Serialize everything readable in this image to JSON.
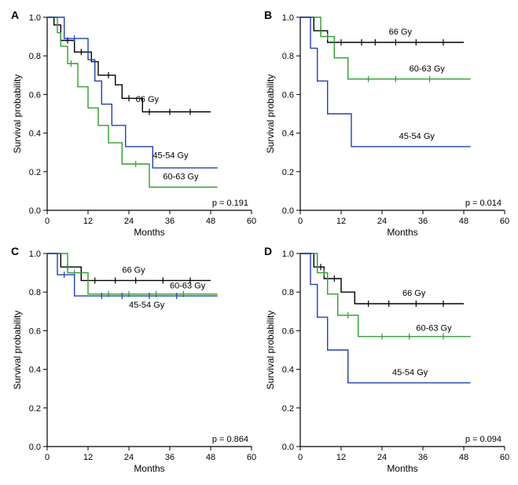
{
  "global": {
    "bg": "#ffffff",
    "axis_color": "#000000",
    "axis_width": 1.2,
    "line_width": 1.4,
    "tick_fontsize": 11,
    "label_fontsize": 12,
    "panel_letter_fontsize": 14,
    "panel_letter_weight": "bold",
    "xlabel": "Months",
    "ylabel": "Survival probability",
    "xlim": [
      0,
      60
    ],
    "ylim": [
      0,
      1.0
    ],
    "xticks": [
      0,
      12,
      24,
      36,
      48,
      60
    ],
    "yticks": [
      0,
      0.2,
      0.4,
      0.6,
      0.8,
      1.0
    ],
    "colors": {
      "66": "#000000",
      "60-63": "#2ca02c",
      "45-54": "#1f3fbf"
    }
  },
  "panels": [
    {
      "letter": "A",
      "p_value": "p = 0.191",
      "series": [
        {
          "key": "66",
          "label": "66 Gy",
          "label_pos": [
            26,
            0.56
          ],
          "steps": [
            [
              0,
              1.0
            ],
            [
              2,
              1.0
            ],
            [
              2,
              0.96
            ],
            [
              4,
              0.96
            ],
            [
              4,
              0.88
            ],
            [
              8,
              0.88
            ],
            [
              8,
              0.82
            ],
            [
              13,
              0.82
            ],
            [
              13,
              0.77
            ],
            [
              15,
              0.77
            ],
            [
              15,
              0.7
            ],
            [
              20,
              0.7
            ],
            [
              20,
              0.65
            ],
            [
              22,
              0.65
            ],
            [
              22,
              0.58
            ],
            [
              28,
              0.58
            ],
            [
              28,
              0.51
            ],
            [
              48,
              0.51
            ]
          ],
          "ticks": [
            [
              6,
              0.88
            ],
            [
              10,
              0.82
            ],
            [
              18,
              0.7
            ],
            [
              24,
              0.58
            ],
            [
              30,
              0.51
            ],
            [
              36,
              0.51
            ],
            [
              42,
              0.51
            ]
          ]
        },
        {
          "key": "60-63",
          "label": "60-63 Gy",
          "label_pos": [
            34,
            0.16
          ],
          "steps": [
            [
              0,
              1.0
            ],
            [
              3,
              1.0
            ],
            [
              3,
              0.92
            ],
            [
              4,
              0.92
            ],
            [
              4,
              0.85
            ],
            [
              6,
              0.85
            ],
            [
              6,
              0.76
            ],
            [
              9,
              0.76
            ],
            [
              9,
              0.64
            ],
            [
              12,
              0.64
            ],
            [
              12,
              0.53
            ],
            [
              15,
              0.53
            ],
            [
              15,
              0.44
            ],
            [
              18,
              0.44
            ],
            [
              18,
              0.35
            ],
            [
              22,
              0.35
            ],
            [
              22,
              0.24
            ],
            [
              30,
              0.24
            ],
            [
              30,
              0.12
            ],
            [
              50,
              0.12
            ]
          ],
          "ticks": [
            [
              7,
              0.76
            ],
            [
              26,
              0.24
            ]
          ]
        },
        {
          "key": "45-54",
          "label": "45-54 Gy",
          "label_pos": [
            31,
            0.27
          ],
          "steps": [
            [
              0,
              1.0
            ],
            [
              5,
              1.0
            ],
            [
              5,
              0.89
            ],
            [
              12,
              0.89
            ],
            [
              12,
              0.78
            ],
            [
              14,
              0.78
            ],
            [
              14,
              0.67
            ],
            [
              16,
              0.67
            ],
            [
              16,
              0.55
            ],
            [
              19,
              0.55
            ],
            [
              19,
              0.44
            ],
            [
              23,
              0.44
            ],
            [
              23,
              0.33
            ],
            [
              31,
              0.33
            ],
            [
              31,
              0.22
            ],
            [
              50,
              0.22
            ]
          ],
          "ticks": [
            [
              8,
              0.89
            ]
          ]
        }
      ]
    },
    {
      "letter": "B",
      "p_value": "p = 0.014",
      "series": [
        {
          "key": "66",
          "label": "66 Gy",
          "label_pos": [
            26,
            0.91
          ],
          "steps": [
            [
              0,
              1.0
            ],
            [
              4,
              1.0
            ],
            [
              4,
              0.93
            ],
            [
              8,
              0.93
            ],
            [
              8,
              0.87
            ],
            [
              48,
              0.87
            ]
          ],
          "ticks": [
            [
              6,
              0.93
            ],
            [
              12,
              0.87
            ],
            [
              18,
              0.87
            ],
            [
              22,
              0.87
            ],
            [
              28,
              0.87
            ],
            [
              34,
              0.87
            ],
            [
              42,
              0.87
            ]
          ]
        },
        {
          "key": "60-63",
          "label": "60-63 Gy",
          "label_pos": [
            32,
            0.72
          ],
          "steps": [
            [
              0,
              1.0
            ],
            [
              6,
              1.0
            ],
            [
              6,
              0.9
            ],
            [
              10,
              0.9
            ],
            [
              10,
              0.79
            ],
            [
              14,
              0.79
            ],
            [
              14,
              0.68
            ],
            [
              50,
              0.68
            ]
          ],
          "ticks": [
            [
              8,
              0.9
            ],
            [
              20,
              0.68
            ],
            [
              28,
              0.68
            ],
            [
              38,
              0.68
            ]
          ]
        },
        {
          "key": "45-54",
          "label": "45-54 Gy",
          "label_pos": [
            29,
            0.37
          ],
          "steps": [
            [
              0,
              1.0
            ],
            [
              3,
              1.0
            ],
            [
              3,
              0.84
            ],
            [
              5,
              0.84
            ],
            [
              5,
              0.67
            ],
            [
              8,
              0.67
            ],
            [
              8,
              0.5
            ],
            [
              15,
              0.5
            ],
            [
              15,
              0.33
            ],
            [
              50,
              0.33
            ]
          ],
          "ticks": []
        }
      ]
    },
    {
      "letter": "C",
      "p_value": "p = 0.864",
      "series": [
        {
          "key": "66",
          "label": "66 Gy",
          "label_pos": [
            22,
            0.9
          ],
          "steps": [
            [
              0,
              1.0
            ],
            [
              4,
              1.0
            ],
            [
              4,
              0.93
            ],
            [
              10,
              0.93
            ],
            [
              10,
              0.86
            ],
            [
              48,
              0.86
            ]
          ],
          "ticks": [
            [
              6,
              0.93
            ],
            [
              14,
              0.86
            ],
            [
              20,
              0.86
            ],
            [
              26,
              0.86
            ],
            [
              34,
              0.86
            ],
            [
              42,
              0.86
            ]
          ]
        },
        {
          "key": "60-63",
          "label": "60-63 Gy",
          "label_pos": [
            36,
            0.82
          ],
          "steps": [
            [
              0,
              1.0
            ],
            [
              6,
              1.0
            ],
            [
              6,
              0.9
            ],
            [
              12,
              0.9
            ],
            [
              12,
              0.79
            ],
            [
              50,
              0.79
            ]
          ],
          "ticks": [
            [
              8,
              0.9
            ],
            [
              18,
              0.79
            ],
            [
              24,
              0.79
            ],
            [
              32,
              0.79
            ],
            [
              40,
              0.79
            ]
          ]
        },
        {
          "key": "45-54",
          "label": "45-54 Gy",
          "label_pos": [
            24,
            0.72
          ],
          "steps": [
            [
              0,
              1.0
            ],
            [
              3,
              1.0
            ],
            [
              3,
              0.89
            ],
            [
              8,
              0.89
            ],
            [
              8,
              0.78
            ],
            [
              50,
              0.78
            ]
          ],
          "ticks": [
            [
              5,
              0.89
            ],
            [
              16,
              0.78
            ],
            [
              22,
              0.78
            ],
            [
              30,
              0.78
            ],
            [
              38,
              0.78
            ]
          ]
        }
      ]
    },
    {
      "letter": "D",
      "p_value": "p = 0.094",
      "series": [
        {
          "key": "66",
          "label": "66 Gy",
          "label_pos": [
            30,
            0.78
          ],
          "steps": [
            [
              0,
              1.0
            ],
            [
              4,
              1.0
            ],
            [
              4,
              0.93
            ],
            [
              7,
              0.93
            ],
            [
              7,
              0.87
            ],
            [
              12,
              0.87
            ],
            [
              12,
              0.8
            ],
            [
              16,
              0.8
            ],
            [
              16,
              0.74
            ],
            [
              48,
              0.74
            ]
          ],
          "ticks": [
            [
              6,
              0.93
            ],
            [
              10,
              0.87
            ],
            [
              20,
              0.74
            ],
            [
              26,
              0.74
            ],
            [
              34,
              0.74
            ],
            [
              42,
              0.74
            ]
          ]
        },
        {
          "key": "60-63",
          "label": "60-63 Gy",
          "label_pos": [
            34,
            0.6
          ],
          "steps": [
            [
              0,
              1.0
            ],
            [
              5,
              1.0
            ],
            [
              5,
              0.9
            ],
            [
              8,
              0.9
            ],
            [
              8,
              0.79
            ],
            [
              11,
              0.79
            ],
            [
              11,
              0.68
            ],
            [
              17,
              0.68
            ],
            [
              17,
              0.57
            ],
            [
              50,
              0.57
            ]
          ],
          "ticks": [
            [
              7,
              0.9
            ],
            [
              14,
              0.68
            ],
            [
              24,
              0.57
            ],
            [
              32,
              0.57
            ],
            [
              42,
              0.57
            ]
          ]
        },
        {
          "key": "45-54",
          "label": "45-54 Gy",
          "label_pos": [
            27,
            0.37
          ],
          "steps": [
            [
              0,
              1.0
            ],
            [
              3,
              1.0
            ],
            [
              3,
              0.84
            ],
            [
              5,
              0.84
            ],
            [
              5,
              0.67
            ],
            [
              8,
              0.67
            ],
            [
              8,
              0.5
            ],
            [
              14,
              0.5
            ],
            [
              14,
              0.33
            ],
            [
              50,
              0.33
            ]
          ],
          "ticks": []
        }
      ]
    }
  ]
}
